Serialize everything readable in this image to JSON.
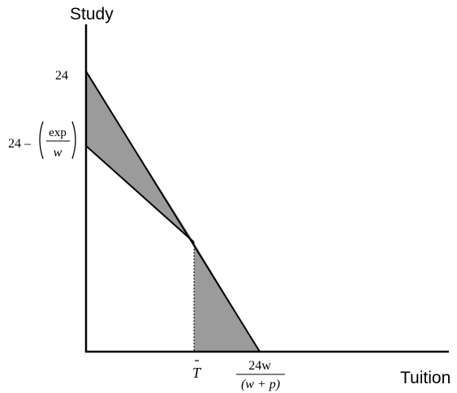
{
  "axes": {
    "y_title": "Study",
    "x_title": "Tuition"
  },
  "y_ticks": {
    "top": "24",
    "lower_prefix": "24 –",
    "lower_numerator": "exp",
    "lower_denominator": "w"
  },
  "x_ticks": {
    "t_bar": "T",
    "intercept_numerator": "24w",
    "intercept_denominator": "(w + p)"
  },
  "colors": {
    "shade": "#9b9b9b",
    "line": "#000000"
  }
}
